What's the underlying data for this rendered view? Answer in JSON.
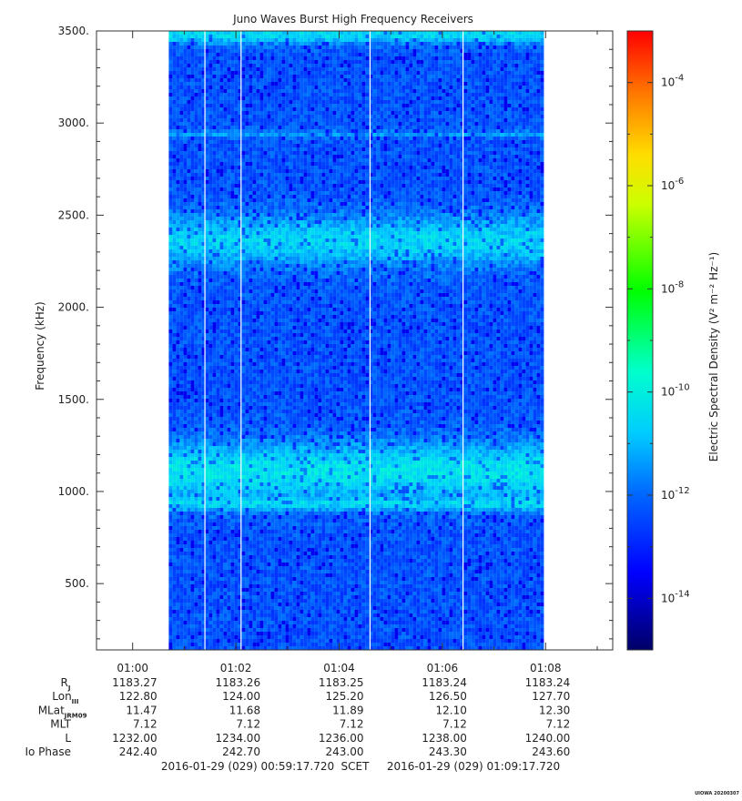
{
  "chart_data": {
    "type": "heatmap",
    "title": "Juno Waves Burst High Frequency Receivers",
    "ylabel": "Frequency (kHz)",
    "ylim": [
      140,
      3500
    ],
    "yticks": [
      500,
      1000,
      1500,
      2000,
      2500,
      3000,
      3500
    ],
    "ytick_labels": [
      "500.",
      "1000.",
      "1500.",
      "2000.",
      "2500.",
      "3000.",
      "3500."
    ],
    "xlim_minutes": [
      59.3,
      69.3
    ],
    "xticks_minutes": [
      60,
      62,
      64,
      66,
      68
    ],
    "xtick_labels": [
      "01:00",
      "01:02",
      "01:04",
      "01:06",
      "01:08"
    ],
    "data_window_minutes": [
      60.7,
      67.9
    ],
    "gap_lines_minutes": [
      61.4,
      62.1,
      64.6,
      66.4
    ],
    "bands": [
      {
        "center_khz": 2940,
        "width_khz": 20,
        "level_log": -11.4
      },
      {
        "center_khz": 2360,
        "width_khz": 140,
        "level_log": -10.6
      },
      {
        "center_khz": 1110,
        "width_khz": 160,
        "level_log": -10.3
      },
      {
        "center_khz": 930,
        "width_khz": 35,
        "level_log": -11.1
      },
      {
        "center_khz": 3480,
        "width_khz": 50,
        "level_log": -10.5
      }
    ],
    "background_level_log": -12.3,
    "colorbar": {
      "label": "Electric Spectral Density (V² m⁻² Hz⁻¹)",
      "range_log": [
        -15,
        -3
      ],
      "tick_exponents": [
        -4,
        -6,
        -8,
        -10,
        -12,
        -14
      ],
      "colors": [
        "#000066",
        "#0000ff",
        "#00aaff",
        "#00ffcc",
        "#00ff00",
        "#ffff00",
        "#ff8800",
        "#ff0000"
      ]
    }
  },
  "ephemeris": {
    "rows": [
      {
        "label": "R",
        "sub": "J",
        "values": [
          "1183.27",
          "1183.26",
          "1183.25",
          "1183.24",
          "1183.24"
        ]
      },
      {
        "label": "Lon",
        "sub": "III",
        "values": [
          "122.80",
          "124.00",
          "125.20",
          "126.50",
          "127.70"
        ]
      },
      {
        "label": "MLat",
        "sub": "JRM09",
        "values": [
          "11.47",
          "11.68",
          "11.89",
          "12.10",
          "12.30"
        ]
      },
      {
        "label": "MLT",
        "sub": "",
        "values": [
          "7.12",
          "7.12",
          "7.12",
          "7.12",
          "7.12"
        ]
      },
      {
        "label": "L",
        "sub": "",
        "values": [
          "1232.00",
          "1234.00",
          "1236.00",
          "1238.00",
          "1240.00"
        ]
      },
      {
        "label": "Io Phase",
        "sub": "",
        "values": [
          "242.40",
          "242.70",
          "243.00",
          "243.30",
          "243.60"
        ]
      }
    ]
  },
  "footer": {
    "start": "2016-01-29 (029) 00:59:17.720",
    "scet": "SCET",
    "end": "2016-01-29 (029) 01:09:17.720"
  },
  "stamp": "UIOWA 20200307"
}
